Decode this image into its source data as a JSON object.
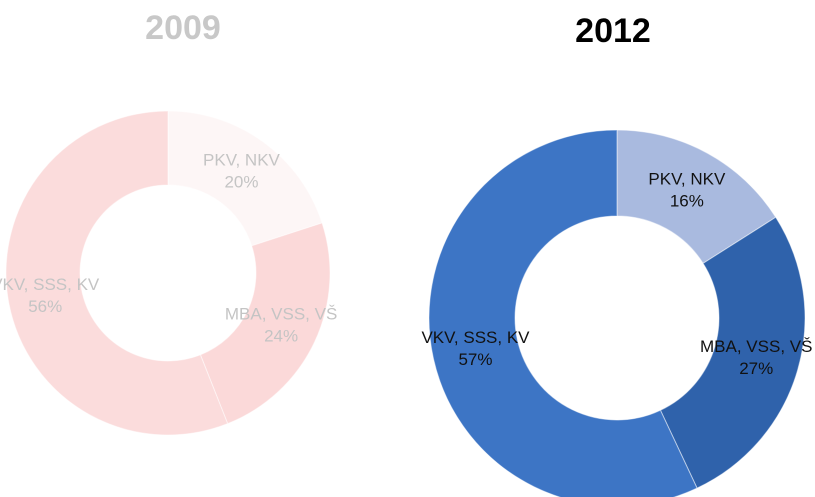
{
  "chart_data": [
    {
      "type": "donut",
      "title": "2009",
      "title_color": "#c8c8c8",
      "label_color": "#c4c4c4",
      "categories": [
        "PKV, NKV",
        "MBA, VSS, VŠ",
        "VKV, SSS, KV"
      ],
      "values": [
        20,
        24,
        56
      ],
      "value_labels": [
        "20%",
        "24%",
        "56%"
      ],
      "colors": [
        "#fdf6f6",
        "#fbd9d9",
        "#fbdcdc"
      ]
    },
    {
      "type": "donut",
      "title": "2012",
      "title_color": "#000000",
      "label_color": "#111111",
      "categories": [
        "PKV, NKV",
        "MBA, VSS, VŠ",
        "VKV, SSS, KV"
      ],
      "values": [
        16,
        27,
        57
      ],
      "value_labels": [
        "16%",
        "27%",
        "57%"
      ],
      "colors": [
        "#a9badf",
        "#2f62ab",
        "#3d75c5"
      ]
    }
  ]
}
